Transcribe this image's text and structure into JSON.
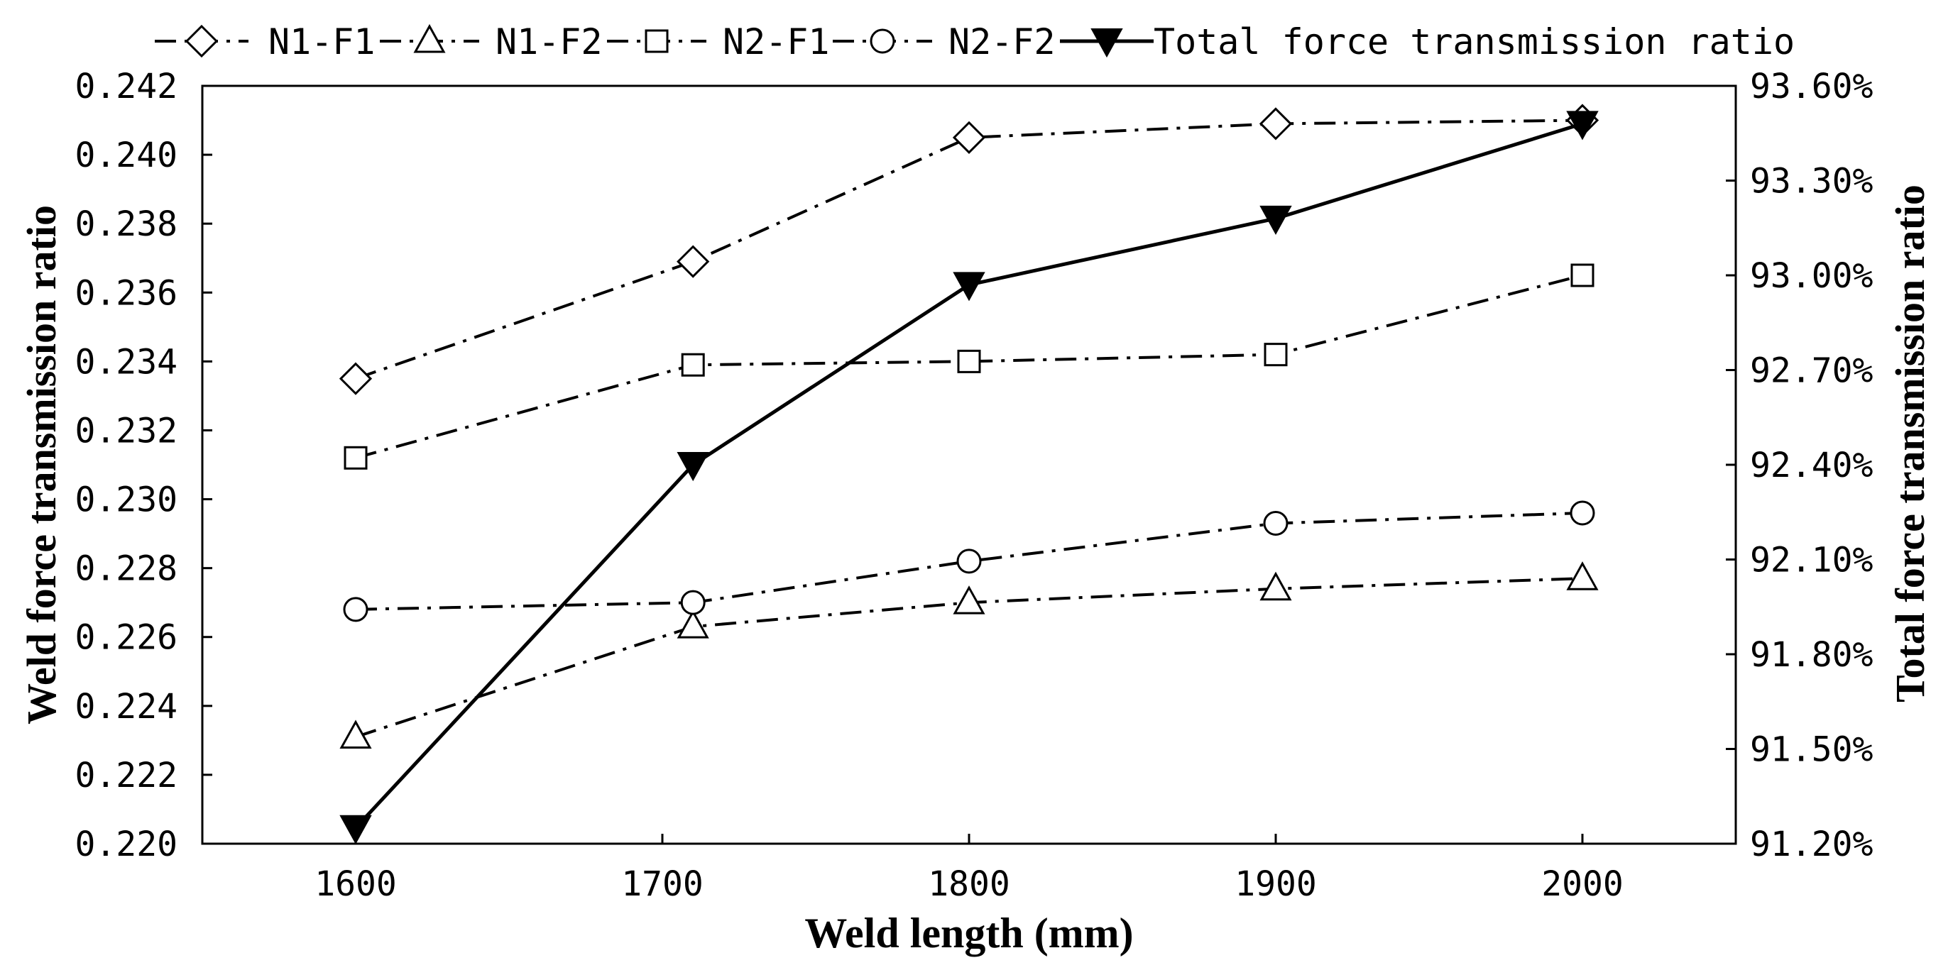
{
  "chart_data": {
    "type": "line",
    "xlabel": "Weld length (mm)",
    "ylabel": "Weld force transmission ratio",
    "y2label": "Total force transmission ratio",
    "xlim": [
      1550,
      2050
    ],
    "xticks": [
      "1600",
      "1700",
      "1800",
      "1900",
      "2000"
    ],
    "ylim": [
      0.22,
      0.242
    ],
    "yticks": [
      "0.220",
      "0.222",
      "0.224",
      "0.226",
      "0.228",
      "0.230",
      "0.232",
      "0.234",
      "0.236",
      "0.238",
      "0.240",
      "0.242"
    ],
    "y2lim": [
      91.2,
      93.6
    ],
    "y2ticks": [
      "91.20%",
      "91.50%",
      "91.80%",
      "92.10%",
      "92.40%",
      "92.70%",
      "93.00%",
      "93.30%",
      "93.60%"
    ],
    "grid": false,
    "legend_position": "top",
    "series": [
      {
        "name": "N1-F1",
        "axis": "left",
        "marker": "diamond",
        "x": [
          1600,
          1710,
          1800,
          1900,
          2000
        ],
        "values": [
          0.2335,
          0.2369,
          0.2405,
          0.2409,
          0.241
        ]
      },
      {
        "name": "N1-F2",
        "axis": "left",
        "marker": "triangle",
        "x": [
          1600,
          1710,
          1800,
          1900,
          2000
        ],
        "values": [
          0.2231,
          0.2263,
          0.227,
          0.2274,
          0.2277
        ]
      },
      {
        "name": "N2-F1",
        "axis": "left",
        "marker": "square",
        "x": [
          1600,
          1710,
          1800,
          1900,
          2000
        ],
        "values": [
          0.2312,
          0.2339,
          0.234,
          0.2342,
          0.2365
        ]
      },
      {
        "name": "N2-F2",
        "axis": "left",
        "marker": "circle",
        "x": [
          1600,
          1710,
          1800,
          1900,
          2000
        ],
        "values": [
          0.2268,
          0.227,
          0.2282,
          0.2293,
          0.2296
        ]
      },
      {
        "name": "Total force transmission ratio",
        "axis": "right",
        "marker": "filled-triangle-down",
        "x": [
          1600,
          1710,
          1800,
          1900,
          2000
        ],
        "values": [
          91.25,
          92.4,
          92.97,
          93.18,
          93.48
        ]
      }
    ]
  }
}
